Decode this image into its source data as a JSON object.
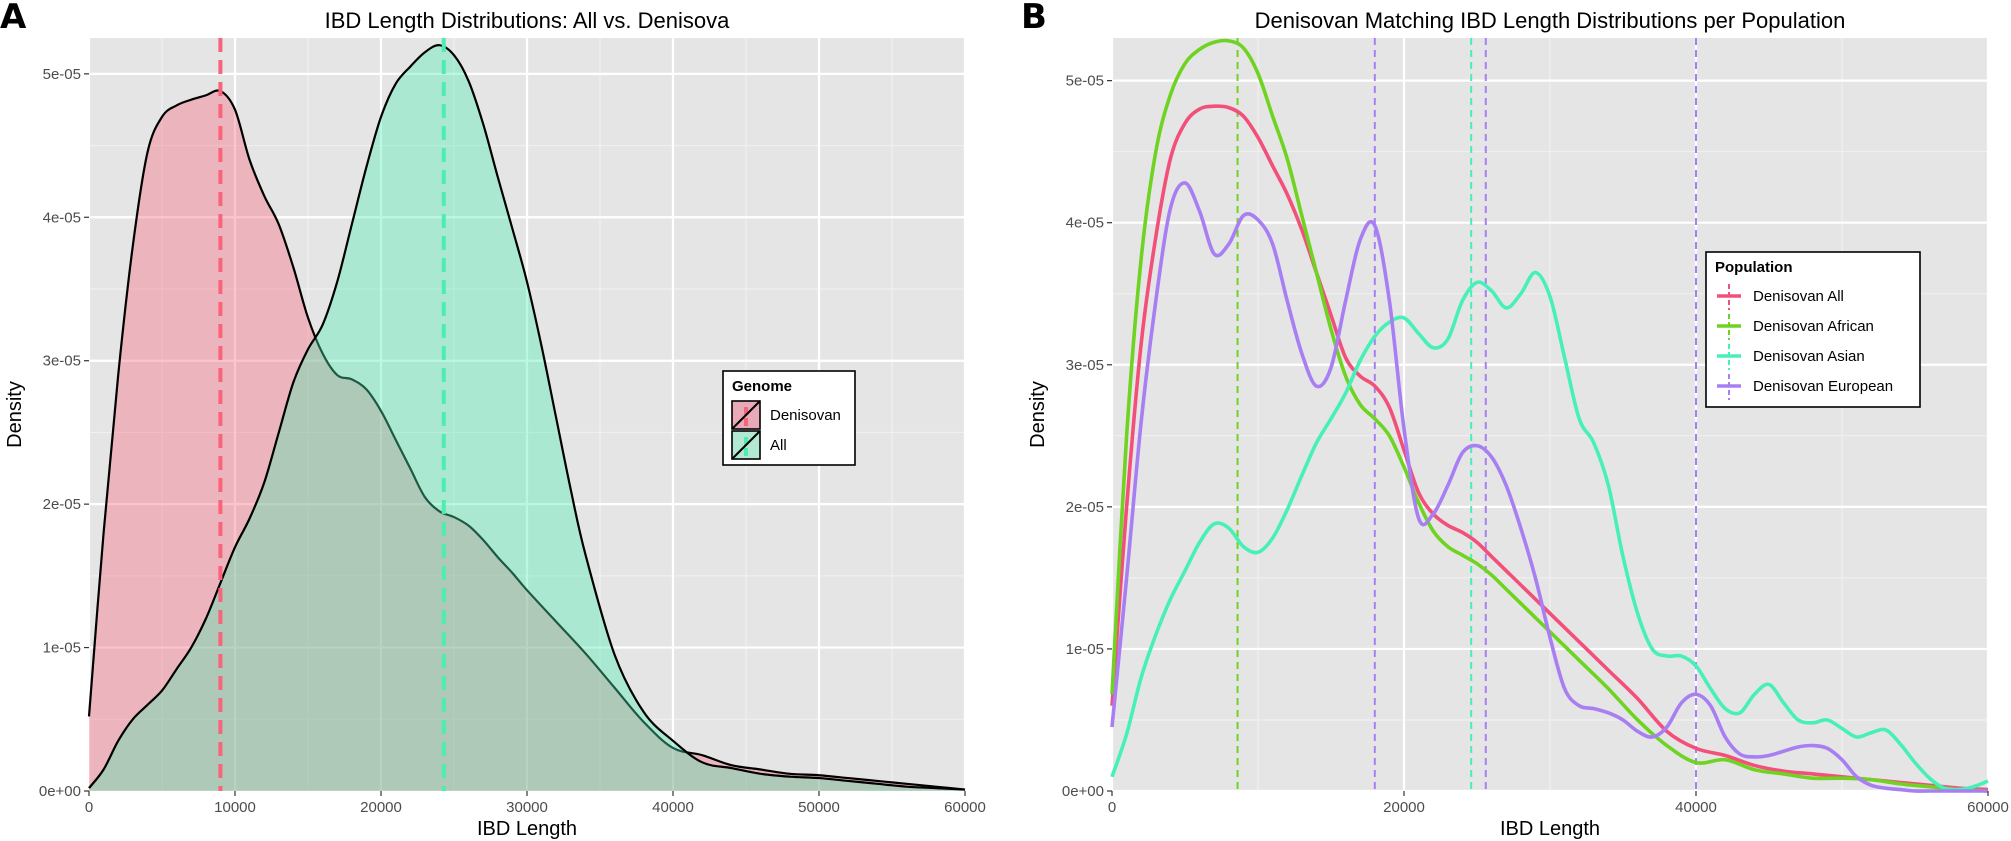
{
  "chart_data": [
    {
      "panel": "A",
      "type": "area",
      "title": "IBD Length Distributions: All vs. Denisova",
      "xlabel": "IBD Length",
      "ylabel": "Density",
      "xlim": [
        0,
        60000
      ],
      "ylim": [
        0,
        5.25e-05
      ],
      "x_ticks": [
        0,
        10000,
        20000,
        30000,
        40000,
        50000,
        60000
      ],
      "x_tick_labels": [
        "0",
        "10000",
        "20000",
        "30000",
        "40000",
        "50000",
        "60000"
      ],
      "y_ticks": [
        0,
        1e-05,
        2e-05,
        3e-05,
        4e-05,
        5e-05
      ],
      "y_tick_labels": [
        "0e+00",
        "1e-05",
        "2e-05",
        "3e-05",
        "4e-05",
        "5e-05"
      ],
      "grid": true,
      "legend": {
        "title": "Genome",
        "position": "right",
        "labels": [
          "Denisovan",
          "All"
        ]
      },
      "series": [
        {
          "name": "Denisovan",
          "color": "#f8647a",
          "fill": "#e9aab8",
          "mean_line": 9000,
          "x": [
            0,
            1000,
            2000,
            3000,
            4000,
            5000,
            6000,
            7000,
            8000,
            9000,
            10000,
            11000,
            12000,
            13000,
            14000,
            15000,
            16000,
            17000,
            18000,
            19000,
            20000,
            21000,
            22000,
            23000,
            24000,
            25000,
            26000,
            27000,
            28000,
            29000,
            30000,
            32000,
            34000,
            36000,
            38000,
            40000,
            42000,
            44000,
            46000,
            48000,
            50000,
            52000,
            54000,
            56000,
            58000,
            60000
          ],
          "y": [
            5.2e-06,
            1.8e-05,
            2.9e-05,
            3.8e-05,
            4.45e-05,
            4.7e-05,
            4.78e-05,
            4.82e-05,
            4.85e-05,
            4.88e-05,
            4.75e-05,
            4.4e-05,
            4.15e-05,
            3.95e-05,
            3.65e-05,
            3.3e-05,
            3.05e-05,
            2.9e-05,
            2.87e-05,
            2.8e-05,
            2.65e-05,
            2.45e-05,
            2.25e-05,
            2.05e-05,
            1.95e-05,
            1.91e-05,
            1.85e-05,
            1.75e-05,
            1.63e-05,
            1.52e-05,
            1.4e-05,
            1.18e-05,
            9.6e-06,
            7.2e-06,
            4.8e-06,
            3e-06,
            2.5e-06,
            1.8e-06,
            1.5e-06,
            1.2e-06,
            1.1e-06,
            9e-07,
            7e-07,
            5e-07,
            3e-07,
            1e-07
          ]
        },
        {
          "name": "All",
          "color": "#4dedb2",
          "fill": "#b3e8d2",
          "mean_line": 24300,
          "x": [
            0,
            1000,
            2000,
            3000,
            4000,
            5000,
            6000,
            7000,
            8000,
            9000,
            10000,
            11000,
            12000,
            13000,
            14000,
            15000,
            16000,
            17000,
            18000,
            19000,
            20000,
            21000,
            22000,
            23000,
            24000,
            25000,
            26000,
            27000,
            28000,
            29000,
            30000,
            31000,
            32000,
            33000,
            34000,
            36000,
            38000,
            40000,
            42000,
            44000,
            46000,
            48000,
            50000,
            52000,
            54000,
            56000,
            58000,
            60000
          ],
          "y": [
            2e-07,
            1.5e-06,
            3.5e-06,
            5e-06,
            6e-06,
            7e-06,
            8.5e-06,
            1e-05,
            1.2e-05,
            1.45e-05,
            1.7e-05,
            1.9e-05,
            2.15e-05,
            2.5e-05,
            2.85e-05,
            3.08e-05,
            3.25e-05,
            3.55e-05,
            3.95e-05,
            4.35e-05,
            4.7e-05,
            4.93e-05,
            5.05e-05,
            5.15e-05,
            5.2e-05,
            5.13e-05,
            4.95e-05,
            4.65e-05,
            4.28e-05,
            3.92e-05,
            3.55e-05,
            3.1e-05,
            2.6e-05,
            2.1e-05,
            1.65e-05,
            9.5e-06,
            5.5e-06,
            3.5e-06,
            2e-06,
            1.6e-06,
            1.2e-06,
            1e-06,
            9e-07,
            7e-07,
            5e-07,
            3e-07,
            2e-07,
            1e-07
          ]
        }
      ]
    },
    {
      "panel": "B",
      "type": "line",
      "title": "Denisovan Matching IBD Length Distributions per Population",
      "xlabel": "IBD Length",
      "ylabel": "Density",
      "xlim": [
        0,
        60000
      ],
      "ylim": [
        0,
        5.3e-05
      ],
      "x_ticks": [
        0,
        20000,
        40000,
        60000
      ],
      "x_tick_labels": [
        "0",
        "20000",
        "40000",
        "60000"
      ],
      "y_ticks": [
        0,
        1e-05,
        2e-05,
        3e-05,
        4e-05,
        5e-05
      ],
      "y_tick_labels": [
        "0e+00",
        "1e-05",
        "2e-05",
        "3e-05",
        "4e-05",
        "5e-05"
      ],
      "grid": true,
      "legend": {
        "title": "Population",
        "position": "right",
        "labels": [
          "Denisovan All",
          "Denisovan African",
          "Denisovan Asian",
          "Denisovan European"
        ]
      },
      "series": [
        {
          "name": "Denisovan All",
          "color": "#f2507a",
          "mean_line": null,
          "x": [
            0,
            1000,
            2000,
            3000,
            4000,
            5000,
            6000,
            7000,
            8000,
            9000,
            10000,
            11000,
            12000,
            13000,
            14000,
            15000,
            16000,
            17000,
            18000,
            19000,
            20000,
            21000,
            22000,
            23000,
            24000,
            25000,
            26000,
            27000,
            28000,
            29000,
            30000,
            32000,
            34000,
            36000,
            38000,
            40000,
            42000,
            44000,
            46000,
            48000,
            50000,
            52000,
            54000,
            56000,
            58000,
            60000
          ],
          "y": [
            6e-06,
            2e-05,
            3.15e-05,
            3.9e-05,
            4.45e-05,
            4.7e-05,
            4.8e-05,
            4.82e-05,
            4.81e-05,
            4.75e-05,
            4.6e-05,
            4.4e-05,
            4.2e-05,
            3.95e-05,
            3.65e-05,
            3.35e-05,
            3.05e-05,
            2.92e-05,
            2.85e-05,
            2.7e-05,
            2.4e-05,
            2.1e-05,
            1.95e-05,
            1.87e-05,
            1.82e-05,
            1.75e-05,
            1.65e-05,
            1.55e-05,
            1.45e-05,
            1.35e-05,
            1.25e-05,
            1.05e-05,
            8.5e-06,
            6.5e-06,
            4.2e-06,
            3e-06,
            2.5e-06,
            1.8e-06,
            1.4e-06,
            1.2e-06,
            1e-06,
            8e-07,
            6e-07,
            4e-07,
            2e-07,
            1e-07
          ]
        },
        {
          "name": "Denisovan African",
          "color": "#6fd322",
          "mean_line": 8600,
          "x": [
            0,
            1000,
            2000,
            3000,
            4000,
            5000,
            6000,
            7000,
            8000,
            9000,
            10000,
            11000,
            12000,
            13000,
            14000,
            15000,
            16000,
            17000,
            18000,
            19000,
            20000,
            21000,
            22000,
            23000,
            24000,
            25000,
            26000,
            27000,
            28000,
            29000,
            30000,
            32000,
            34000,
            36000,
            38000,
            40000,
            42000,
            44000,
            46000,
            48000,
            50000,
            52000,
            54000,
            56000,
            58000,
            60000
          ],
          "y": [
            6.8e-06,
            2.5e-05,
            3.75e-05,
            4.5e-05,
            4.9e-05,
            5.12e-05,
            5.22e-05,
            5.27e-05,
            5.28e-05,
            5.23e-05,
            5.05e-05,
            4.75e-05,
            4.45e-05,
            4.05e-05,
            3.65e-05,
            3.25e-05,
            2.92e-05,
            2.72e-05,
            2.62e-05,
            2.5e-05,
            2.28e-05,
            2.03e-05,
            1.83e-05,
            1.72e-05,
            1.66e-05,
            1.6e-05,
            1.52e-05,
            1.42e-05,
            1.32e-05,
            1.22e-05,
            1.12e-05,
            9.2e-06,
            7.2e-06,
            5e-06,
            3.2e-06,
            2e-06,
            2.2e-06,
            1.5e-06,
            1.2e-06,
            9e-07,
            9e-07,
            8e-07,
            5e-07,
            3e-07,
            1e-07,
            0
          ]
        },
        {
          "name": "Denisovan Asian",
          "color": "#47f0b7",
          "mean_line": 24600,
          "x": [
            0,
            1000,
            2000,
            3000,
            4000,
            5000,
            6000,
            7000,
            8000,
            9000,
            10000,
            11000,
            12000,
            13000,
            14000,
            15000,
            16000,
            17000,
            18000,
            19000,
            20000,
            21000,
            22000,
            23000,
            24000,
            25000,
            26000,
            27000,
            28000,
            29000,
            30000,
            31000,
            32000,
            33000,
            34000,
            35000,
            36000,
            37000,
            38000,
            39000,
            40000,
            41000,
            42000,
            43000,
            44000,
            45000,
            46000,
            47000,
            48000,
            49000,
            50000,
            51000,
            52000,
            53000,
            54000,
            55000,
            56000,
            57000,
            58000,
            59000,
            60000
          ],
          "y": [
            1e-06,
            4e-06,
            8e-06,
            1.1e-05,
            1.35e-05,
            1.55e-05,
            1.75e-05,
            1.88e-05,
            1.85e-05,
            1.72e-05,
            1.68e-05,
            1.78e-05,
            1.98e-05,
            2.22e-05,
            2.45e-05,
            2.62e-05,
            2.8e-05,
            3.03e-05,
            3.2e-05,
            3.3e-05,
            3.33e-05,
            3.22e-05,
            3.12e-05,
            3.18e-05,
            3.45e-05,
            3.58e-05,
            3.52e-05,
            3.4e-05,
            3.5e-05,
            3.65e-05,
            3.48e-05,
            3.05e-05,
            2.62e-05,
            2.45e-05,
            2.15e-05,
            1.65e-05,
            1.25e-05,
            1e-05,
            9.5e-06,
            9.5e-06,
            8.8e-06,
            7.2e-06,
            5.8e-06,
            5.5e-06,
            6.8e-06,
            7.5e-06,
            6.2e-06,
            5e-06,
            4.8e-06,
            5e-06,
            4.4e-06,
            3.8e-06,
            4.1e-06,
            4.3e-06,
            3.3e-06,
            2e-06,
            9e-07,
            2e-07,
            1e-07,
            3e-07,
            7e-07
          ]
        },
        {
          "name": "Denisovan European",
          "color": "#a87ef3",
          "mean_line": 18000,
          "extra_lines": [
            25600,
            40000
          ],
          "x": [
            0,
            1000,
            2000,
            3000,
            4000,
            5000,
            6000,
            7000,
            8000,
            9000,
            10000,
            11000,
            12000,
            13000,
            14000,
            15000,
            16000,
            17000,
            18000,
            19000,
            20000,
            21000,
            22000,
            23000,
            24000,
            25000,
            26000,
            27000,
            28000,
            29000,
            30000,
            31000,
            32000,
            33000,
            34000,
            35000,
            36000,
            37000,
            38000,
            39000,
            40000,
            41000,
            42000,
            43000,
            44000,
            45000,
            46000,
            47000,
            48000,
            49000,
            50000,
            51000,
            52000,
            53000,
            54000,
            55000,
            56000,
            57000,
            58000,
            59000,
            60000
          ],
          "y": [
            4.5e-06,
            1.5e-05,
            2.6e-05,
            3.45e-05,
            4.1e-05,
            4.28e-05,
            4.08e-05,
            3.78e-05,
            3.85e-05,
            4.05e-05,
            4.02e-05,
            3.85e-05,
            3.45e-05,
            3.08e-05,
            2.85e-05,
            2.98e-05,
            3.45e-05,
            3.88e-05,
            3.98e-05,
            3.45e-05,
            2.55e-05,
            1.92e-05,
            1.95e-05,
            2.15e-05,
            2.38e-05,
            2.43e-05,
            2.35e-05,
            2.15e-05,
            1.85e-05,
            1.5e-05,
            1.08e-05,
            7.2e-06,
            6e-06,
            5.8e-06,
            5.5e-06,
            5e-06,
            4.2e-06,
            3.8e-06,
            4.5e-06,
            6.2e-06,
            6.8e-06,
            6e-06,
            3.8e-06,
            2.6e-06,
            2.4e-06,
            2.5e-06,
            2.8e-06,
            3.1e-06,
            3.2e-06,
            3e-06,
            2.2e-06,
            1e-06,
            4e-07,
            2e-07,
            1e-07,
            0,
            0,
            0,
            0,
            0,
            0
          ]
        }
      ]
    }
  ]
}
